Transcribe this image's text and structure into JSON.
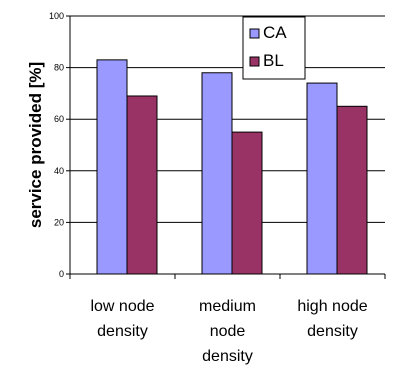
{
  "chart_data": {
    "type": "bar",
    "categories": [
      [
        "low node",
        "density"
      ],
      [
        "medium",
        "node",
        "density"
      ],
      [
        "high node",
        "density"
      ]
    ],
    "series": [
      {
        "name": "CA",
        "values": [
          83,
          78,
          74
        ],
        "color": "#9999ff"
      },
      {
        "name": "BL",
        "values": [
          69,
          55,
          65
        ],
        "color": "#993366"
      }
    ],
    "ylabel": "service provided [%]",
    "xlabel": "",
    "ylim": [
      0,
      100
    ],
    "yticks": [
      "0",
      "20",
      "40",
      "60",
      "80",
      "100"
    ],
    "grid": true,
    "legend_position": "top-right"
  }
}
